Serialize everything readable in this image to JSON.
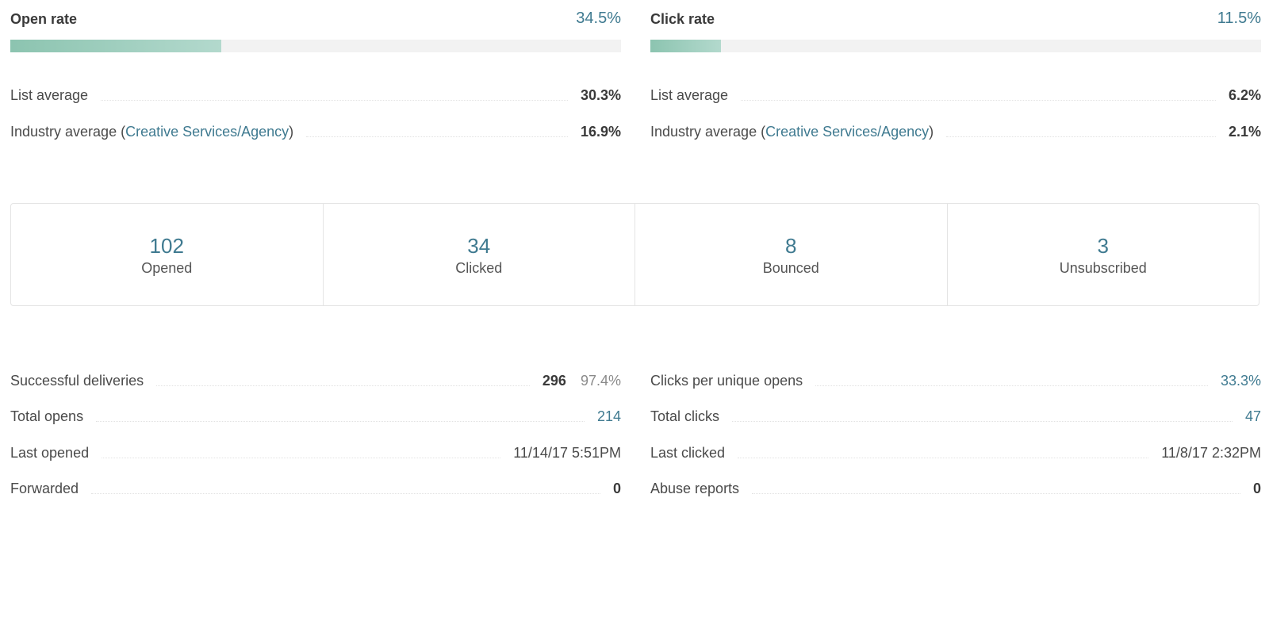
{
  "open_rate": {
    "title": "Open rate",
    "value": "34.5%",
    "fill": 0.345,
    "list_average_label": "List average",
    "list_average_value": "30.3%",
    "industry_label_prefix": "Industry average (",
    "industry_link": "Creative Services/Agency",
    "industry_label_suffix": ")",
    "industry_value": "16.9%"
  },
  "click_rate": {
    "title": "Click rate",
    "value": "11.5%",
    "fill": 0.115,
    "list_average_label": "List average",
    "list_average_value": "6.2%",
    "industry_label_prefix": "Industry average (",
    "industry_link": "Creative Services/Agency",
    "industry_label_suffix": ")",
    "industry_value": "2.1%"
  },
  "stats": [
    {
      "number": "102",
      "label": "Opened"
    },
    {
      "number": "34",
      "label": "Clicked"
    },
    {
      "number": "8",
      "label": "Bounced"
    },
    {
      "number": "3",
      "label": "Unsubscribed"
    }
  ],
  "details_left": {
    "successful_deliveries_label": "Successful deliveries",
    "successful_deliveries_value": "296",
    "successful_deliveries_pct": "97.4%",
    "total_opens_label": "Total opens",
    "total_opens_value": "214",
    "last_opened_label": "Last opened",
    "last_opened_value": "11/14/17 5:51PM",
    "forwarded_label": "Forwarded",
    "forwarded_value": "0"
  },
  "details_right": {
    "clicks_per_unique_opens_label": "Clicks per unique opens",
    "clicks_per_unique_opens_value": "33.3%",
    "total_clicks_label": "Total clicks",
    "total_clicks_value": "47",
    "last_clicked_label": "Last clicked",
    "last_clicked_value": "11/8/17 2:32PM",
    "abuse_reports_label": "Abuse reports",
    "abuse_reports_value": "0"
  },
  "colors": {
    "accent": "#3f7a90",
    "bar_fill": "#8cc4b0",
    "bar_track": "#f2f2f2"
  }
}
